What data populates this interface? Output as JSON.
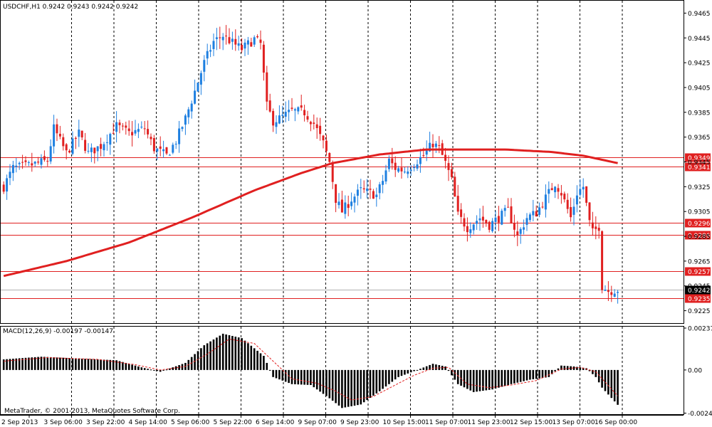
{
  "window": {
    "symbol_info": "USDCHF,H1  0.9242 0.9243 0.9242 0.9242",
    "copyright": "MetaTrader, © 2001-2013, MetaQuotes Software Corp."
  },
  "colors": {
    "bull": "#1e7fe0",
    "bear": "#e02020",
    "ma": "#e02020",
    "level_line": "#e02020",
    "macd_hist": "#000000",
    "signal": "#e02020",
    "grid": "#000000",
    "current_bg": "#000000"
  },
  "chart_data": [
    {
      "type": "candlestick",
      "name": "price",
      "ylim": [
        0.9215,
        0.9475
      ],
      "y_ticks": [
        0.9465,
        0.9445,
        0.9425,
        0.9405,
        0.9385,
        0.9365,
        0.9345,
        0.9325,
        0.9305,
        0.9285,
        0.9265,
        0.9245,
        0.9225
      ],
      "x_tick_labels": [
        "2 Sep 2013",
        "3 Sep 06:00",
        "3 Sep 22:00",
        "4 Sep 14:00",
        "5 Sep 06:00",
        "5 Sep 22:00",
        "6 Sep 14:00",
        "9 Sep 07:00",
        "9 Sep 23:00",
        "10 Sep 15:00",
        "11 Sep 07:00",
        "11 Sep 23:00",
        "12 Sep 15:00",
        "13 Sep 07:00",
        "16 Sep 00:00"
      ],
      "close_path": [
        [
          0,
          0.9325
        ],
        [
          3,
          0.934
        ],
        [
          8,
          0.9342
        ],
        [
          14,
          0.9346
        ],
        [
          16,
          0.9372
        ],
        [
          20,
          0.9352
        ],
        [
          24,
          0.9368
        ],
        [
          27,
          0.9352
        ],
        [
          31,
          0.9358
        ],
        [
          36,
          0.9374
        ],
        [
          40,
          0.9368
        ],
        [
          45,
          0.9372
        ],
        [
          48,
          0.9356
        ],
        [
          52,
          0.935
        ],
        [
          55,
          0.9362
        ],
        [
          58,
          0.938
        ],
        [
          61,
          0.9402
        ],
        [
          64,
          0.9425
        ],
        [
          67,
          0.9442
        ],
        [
          70,
          0.9447
        ],
        [
          73,
          0.9441
        ],
        [
          76,
          0.9436
        ],
        [
          80,
          0.9444
        ],
        [
          82,
          0.944
        ],
        [
          84,
          0.939
        ],
        [
          86,
          0.9378
        ],
        [
          88,
          0.938
        ],
        [
          92,
          0.9386
        ],
        [
          96,
          0.9385
        ],
        [
          99,
          0.9376
        ],
        [
          102,
          0.936
        ],
        [
          104,
          0.9345
        ],
        [
          106,
          0.9315
        ],
        [
          108,
          0.9305
        ],
        [
          111,
          0.9315
        ],
        [
          114,
          0.9322
        ],
        [
          117,
          0.932
        ],
        [
          119,
          0.9318
        ],
        [
          121,
          0.933
        ],
        [
          123,
          0.9346
        ],
        [
          125,
          0.934
        ],
        [
          128,
          0.9338
        ],
        [
          131,
          0.9344
        ],
        [
          134,
          0.935
        ],
        [
          137,
          0.936
        ],
        [
          139,
          0.9356
        ],
        [
          141,
          0.9344
        ],
        [
          143,
          0.933
        ],
        [
          145,
          0.9302
        ],
        [
          148,
          0.9292
        ],
        [
          152,
          0.93
        ],
        [
          155,
          0.9294
        ],
        [
          158,
          0.93
        ],
        [
          161,
          0.9306
        ],
        [
          164,
          0.9285
        ],
        [
          167,
          0.93
        ],
        [
          170,
          0.9304
        ],
        [
          173,
          0.9316
        ],
        [
          176,
          0.9328
        ],
        [
          178,
          0.932
        ],
        [
          181,
          0.93
        ],
        [
          183,
          0.932
        ],
        [
          185,
          0.9325
        ],
        [
          187,
          0.9296
        ],
        [
          188,
          0.9288
        ],
        [
          190,
          0.9293
        ],
        [
          191,
          0.9245
        ],
        [
          193,
          0.9241
        ],
        [
          196,
          0.9242
        ]
      ],
      "moving_average": [
        [
          0,
          0.9253
        ],
        [
          20,
          0.9265
        ],
        [
          40,
          0.928
        ],
        [
          60,
          0.93
        ],
        [
          80,
          0.9322
        ],
        [
          95,
          0.9336
        ],
        [
          105,
          0.9344
        ],
        [
          120,
          0.9351
        ],
        [
          135,
          0.9355
        ],
        [
          145,
          0.9355
        ],
        [
          160,
          0.9355
        ],
        [
          175,
          0.9353
        ],
        [
          185,
          0.935
        ],
        [
          196,
          0.9344
        ]
      ],
      "horizontal_levels": [
        0.9349,
        0.9341,
        0.9296,
        0.9286,
        0.9257,
        0.9235
      ],
      "level_labels": [
        "0.9349",
        "0.9341",
        "0.9296",
        "0.9286",
        "0.9257",
        "0.9235"
      ],
      "current_price": 0.9242,
      "current_price_label": "0.9242"
    },
    {
      "type": "histogram",
      "name": "MACD",
      "indicator_label": "MACD(12,26,9) -0.00197 -0.00147",
      "ylim": [
        -0.0025,
        0.00245
      ],
      "y_ticks": [
        0.00237,
        0.0,
        -0.00244
      ],
      "y_tick_labels": [
        "0.00237",
        "0.00",
        "-0.00244"
      ],
      "macd_path": [
        [
          0,
          0.0006
        ],
        [
          12,
          0.00075
        ],
        [
          24,
          0.00065
        ],
        [
          36,
          0.00055
        ],
        [
          44,
          0.00015
        ],
        [
          50,
          -0.0001
        ],
        [
          58,
          0.0004
        ],
        [
          64,
          0.0014
        ],
        [
          70,
          0.00205
        ],
        [
          76,
          0.0018
        ],
        [
          83,
          0.0008
        ],
        [
          86,
          -0.0004
        ],
        [
          92,
          -0.0008
        ],
        [
          98,
          -0.00085
        ],
        [
          104,
          -0.0016
        ],
        [
          108,
          -0.00215
        ],
        [
          114,
          -0.00195
        ],
        [
          120,
          -0.0012
        ],
        [
          126,
          -0.0004
        ],
        [
          132,
          0.0
        ],
        [
          137,
          0.00035
        ],
        [
          141,
          0.0002
        ],
        [
          145,
          -0.0008
        ],
        [
          150,
          -0.00125
        ],
        [
          156,
          -0.0011
        ],
        [
          162,
          -0.0008
        ],
        [
          168,
          -0.00055
        ],
        [
          174,
          -0.0004
        ],
        [
          178,
          0.00025
        ],
        [
          182,
          0.0002
        ],
        [
          186,
          0.0001
        ],
        [
          189,
          -0.0004
        ],
        [
          191,
          -0.001
        ],
        [
          196,
          -0.00197
        ]
      ],
      "signal_path": [
        [
          0,
          0.0005
        ],
        [
          14,
          0.0007
        ],
        [
          30,
          0.0006
        ],
        [
          42,
          0.0003
        ],
        [
          50,
          0.0
        ],
        [
          58,
          0.0002
        ],
        [
          65,
          0.0009
        ],
        [
          72,
          0.00175
        ],
        [
          80,
          0.0015
        ],
        [
          86,
          0.0005
        ],
        [
          92,
          -0.0005
        ],
        [
          100,
          -0.00075
        ],
        [
          106,
          -0.0012
        ],
        [
          111,
          -0.0017
        ],
        [
          118,
          -0.0015
        ],
        [
          125,
          -0.00085
        ],
        [
          131,
          -0.0003
        ],
        [
          137,
          0.0001
        ],
        [
          142,
          0.00015
        ],
        [
          148,
          -0.0008
        ],
        [
          155,
          -0.001
        ],
        [
          162,
          -0.00085
        ],
        [
          170,
          -0.0006
        ],
        [
          178,
          5e-05
        ],
        [
          184,
          0.00015
        ],
        [
          189,
          -0.0001
        ],
        [
          196,
          -0.00147
        ]
      ]
    }
  ]
}
